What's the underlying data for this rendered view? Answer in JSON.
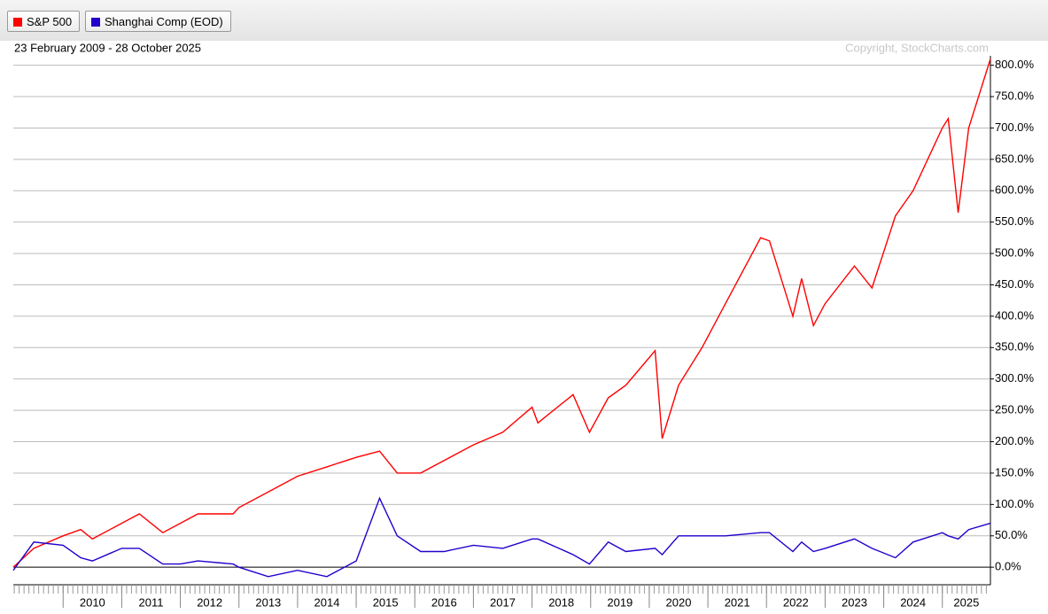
{
  "chart_data": {
    "type": "line",
    "subtitle": "23 February 2009 - 28 October 2025",
    "copyright": "Copyright, StockCharts.com",
    "x": [
      2009.15,
      2009.5,
      2010.0,
      2010.3,
      2010.5,
      2011.0,
      2011.3,
      2011.7,
      2012.0,
      2012.3,
      2012.9,
      2013.0,
      2013.5,
      2014.0,
      2014.5,
      2015.0,
      2015.4,
      2015.7,
      2016.1,
      2016.5,
      2017.0,
      2017.5,
      2018.0,
      2018.1,
      2018.7,
      2018.98,
      2019.3,
      2019.6,
      2020.1,
      2020.22,
      2020.5,
      2020.9,
      2021.3,
      2021.9,
      2022.05,
      2022.45,
      2022.6,
      2022.8,
      2023.0,
      2023.5,
      2023.8,
      2024.2,
      2024.5,
      2025.0,
      2025.1,
      2025.27,
      2025.45,
      2025.82
    ],
    "series": [
      {
        "name": "S&P 500",
        "color": "#ff0000",
        "values": [
          0,
          30,
          50,
          60,
          45,
          70,
          85,
          55,
          70,
          85,
          85,
          95,
          120,
          145,
          160,
          175,
          185,
          150,
          150,
          170,
          195,
          215,
          255,
          230,
          275,
          215,
          270,
          290,
          345,
          205,
          290,
          350,
          420,
          525,
          520,
          400,
          460,
          385,
          420,
          480,
          445,
          560,
          600,
          700,
          715,
          565,
          700,
          810
        ]
      },
      {
        "name": "Shanghai Comp (EOD)",
        "color": "#2200cc",
        "values": [
          -5,
          40,
          35,
          15,
          10,
          30,
          30,
          5,
          5,
          10,
          5,
          0,
          -15,
          -5,
          -15,
          10,
          110,
          50,
          25,
          25,
          35,
          30,
          45,
          45,
          20,
          5,
          40,
          25,
          30,
          20,
          50,
          50,
          50,
          55,
          55,
          25,
          40,
          25,
          30,
          45,
          30,
          15,
          40,
          55,
          50,
          45,
          60,
          70
        ]
      }
    ],
    "xlim": [
      2009.15,
      2025.82
    ],
    "xticks": [
      2010,
      2011,
      2012,
      2013,
      2014,
      2015,
      2016,
      2017,
      2018,
      2019,
      2020,
      2021,
      2022,
      2023,
      2024,
      2025
    ],
    "ylim": [
      -28,
      815
    ],
    "yticks": [
      {
        "value": 0,
        "label": "0.0%"
      },
      {
        "value": 50,
        "label": "50.0%"
      },
      {
        "value": 100,
        "label": "100.0%"
      },
      {
        "value": 150,
        "label": "150.0%"
      },
      {
        "value": 200,
        "label": "200.0%"
      },
      {
        "value": 250,
        "label": "250.0%"
      },
      {
        "value": 300,
        "label": "300.0%"
      },
      {
        "value": 350,
        "label": "350.0%"
      },
      {
        "value": 400,
        "label": "400.0%"
      },
      {
        "value": 450,
        "label": "450.0%"
      },
      {
        "value": 500,
        "label": "500.0%"
      },
      {
        "value": 550,
        "label": "550.0%"
      },
      {
        "value": 600,
        "label": "600.0%"
      },
      {
        "value": 650,
        "label": "650.0%"
      },
      {
        "value": 700,
        "label": "700.0%"
      },
      {
        "value": 750,
        "label": "750.0%"
      },
      {
        "value": 800,
        "label": "800.0%"
      }
    ],
    "grid": true
  }
}
